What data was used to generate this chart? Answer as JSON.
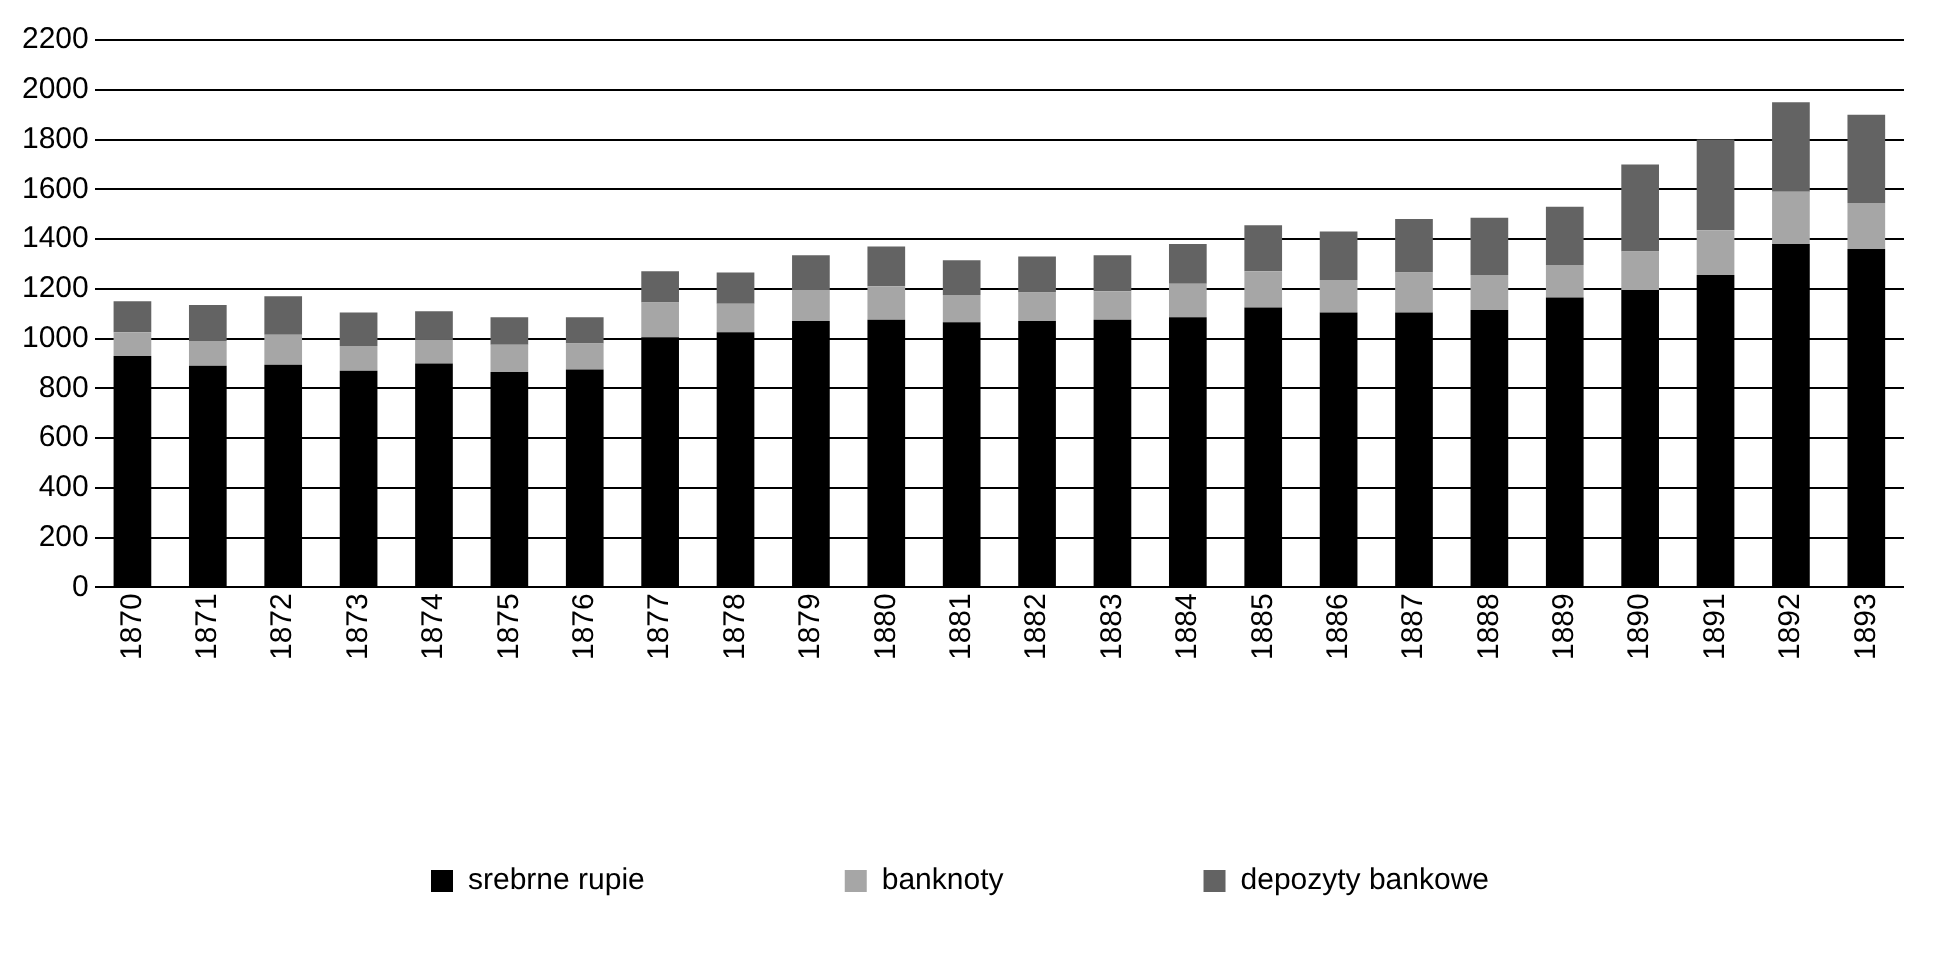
{
  "chart_data": {
    "type": "bar",
    "stacked": true,
    "categories": [
      "1870",
      "1871",
      "1872",
      "1873",
      "1874",
      "1875",
      "1876",
      "1877",
      "1878",
      "1879",
      "1880",
      "1881",
      "1882",
      "1883",
      "1884",
      "1885",
      "1886",
      "1887",
      "1888",
      "1889",
      "1890",
      "1891",
      "1892",
      "1893"
    ],
    "series": [
      {
        "name": "srebrne rupie",
        "color": "#000000",
        "values": [
          930,
          890,
          895,
          870,
          900,
          865,
          875,
          1005,
          1025,
          1070,
          1075,
          1065,
          1070,
          1075,
          1085,
          1125,
          1105,
          1105,
          1115,
          1165,
          1195,
          1255,
          1380,
          1360
        ]
      },
      {
        "name": "banknoty",
        "color": "#a6a6a6",
        "values": [
          95,
          100,
          120,
          100,
          95,
          110,
          105,
          140,
          115,
          125,
          135,
          110,
          115,
          115,
          135,
          145,
          130,
          160,
          140,
          130,
          155,
          180,
          210,
          185
        ]
      },
      {
        "name": "depozyty bankowe",
        "color": "#636363",
        "values": [
          125,
          145,
          155,
          135,
          115,
          110,
          105,
          125,
          125,
          140,
          160,
          140,
          145,
          145,
          160,
          185,
          195,
          215,
          230,
          235,
          350,
          365,
          360,
          355
        ]
      }
    ],
    "ylim": [
      0,
      2200
    ],
    "yticks": [
      0,
      200,
      400,
      600,
      800,
      1000,
      1200,
      1400,
      1600,
      1800,
      2000,
      2200
    ],
    "grid": "y",
    "legend": "bottom"
  }
}
